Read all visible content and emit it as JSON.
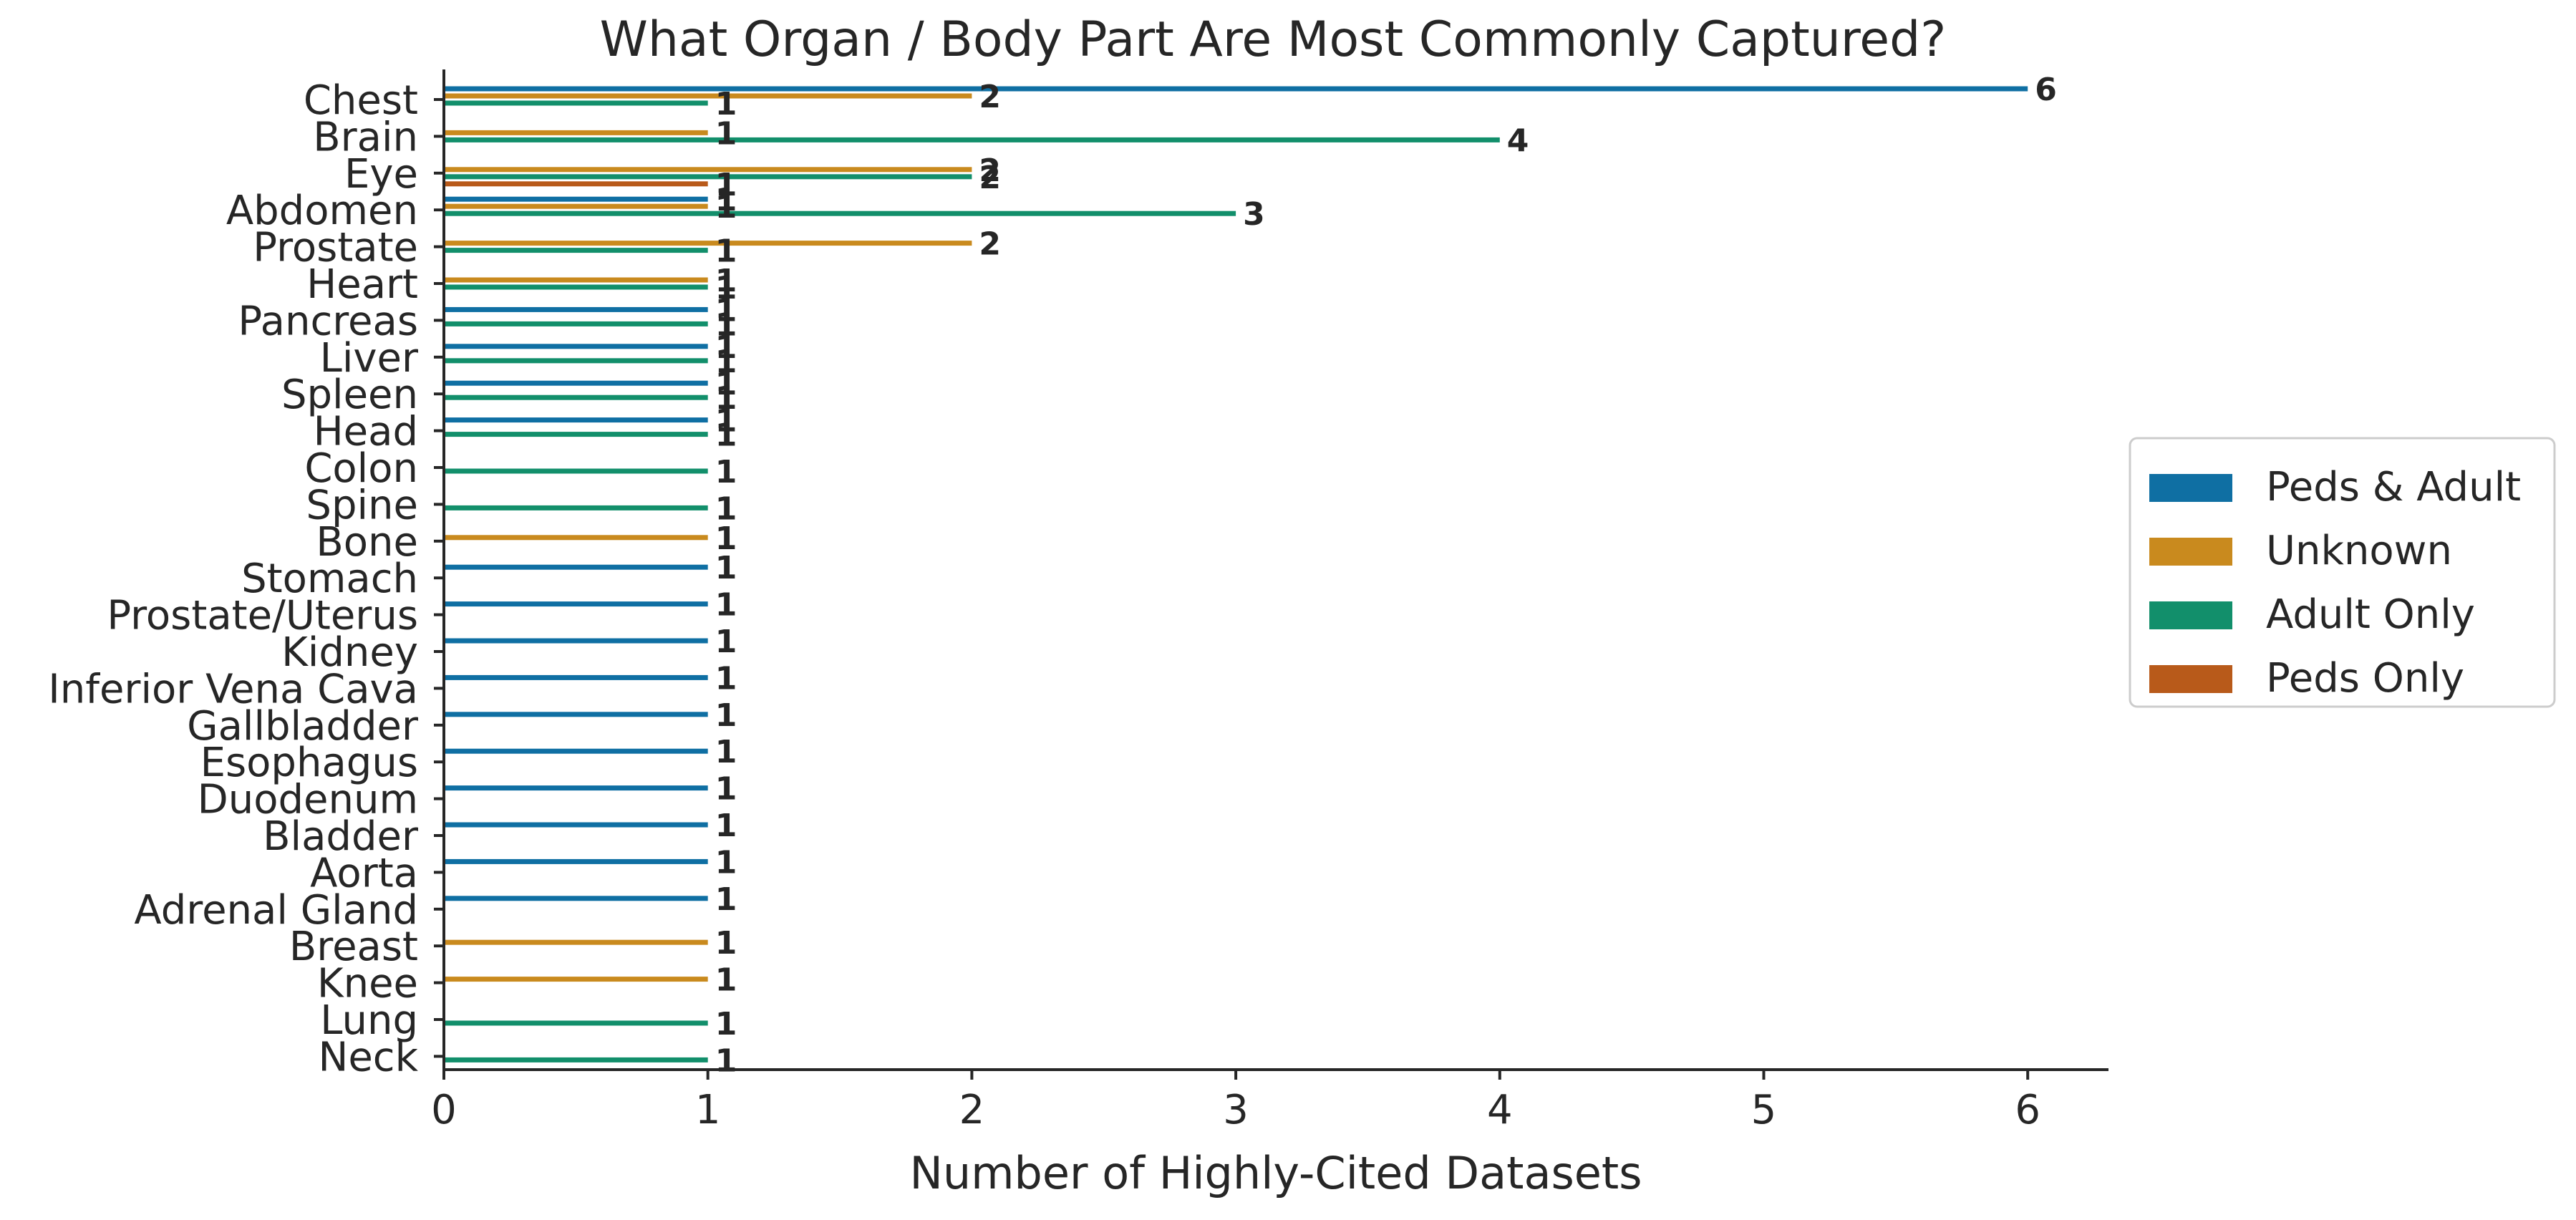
{
  "chart_data": {
    "type": "bar",
    "orientation": "horizontal",
    "title": "What Organ / Body Part Are Most Commonly Captured?",
    "xlabel": "Number of Highly-Cited Datasets",
    "ylabel": "",
    "xlim": [
      0,
      6.3
    ],
    "xticks": [
      "0",
      "1",
      "2",
      "3",
      "4",
      "5",
      "6"
    ],
    "grid": false,
    "legend_position": "right",
    "categories": [
      "Chest",
      "Brain",
      "Eye",
      "Abdomen",
      "Prostate",
      "Heart",
      "Pancreas",
      "Liver",
      "Spleen",
      "Head",
      "Colon",
      "Spine",
      "Bone",
      "Stomach",
      "Prostate/Uterus",
      "Kidney",
      "Inferior Vena Cava",
      "Gallbladder",
      "Esophagus",
      "Duodenum",
      "Bladder",
      "Aorta",
      "Adrenal Gland",
      "Breast",
      "Knee",
      "Lung",
      "Neck"
    ],
    "series": [
      {
        "name": "Peds & Adult",
        "color": "#0f6fa3",
        "values": [
          6,
          0,
          0,
          1,
          0,
          0,
          1,
          1,
          1,
          1,
          0,
          0,
          0,
          1,
          1,
          1,
          1,
          1,
          1,
          1,
          1,
          1,
          1,
          0,
          0,
          0,
          0
        ]
      },
      {
        "name": "Unknown",
        "color": "#c98a1e",
        "values": [
          2,
          1,
          2,
          1,
          2,
          1,
          0,
          0,
          0,
          0,
          0,
          0,
          1,
          0,
          0,
          0,
          0,
          0,
          0,
          0,
          0,
          0,
          0,
          1,
          1,
          0,
          0
        ]
      },
      {
        "name": "Adult Only",
        "color": "#128f6b",
        "values": [
          1,
          4,
          2,
          3,
          1,
          1,
          1,
          1,
          1,
          1,
          1,
          1,
          0,
          0,
          0,
          0,
          0,
          0,
          0,
          0,
          0,
          0,
          0,
          0,
          0,
          1,
          1
        ]
      },
      {
        "name": "Peds Only",
        "color": "#b85a1a",
        "values": [
          0,
          0,
          1,
          0,
          0,
          0,
          0,
          0,
          0,
          0,
          0,
          0,
          0,
          0,
          0,
          0,
          0,
          0,
          0,
          0,
          0,
          0,
          0,
          0,
          0,
          0,
          0
        ]
      }
    ]
  }
}
